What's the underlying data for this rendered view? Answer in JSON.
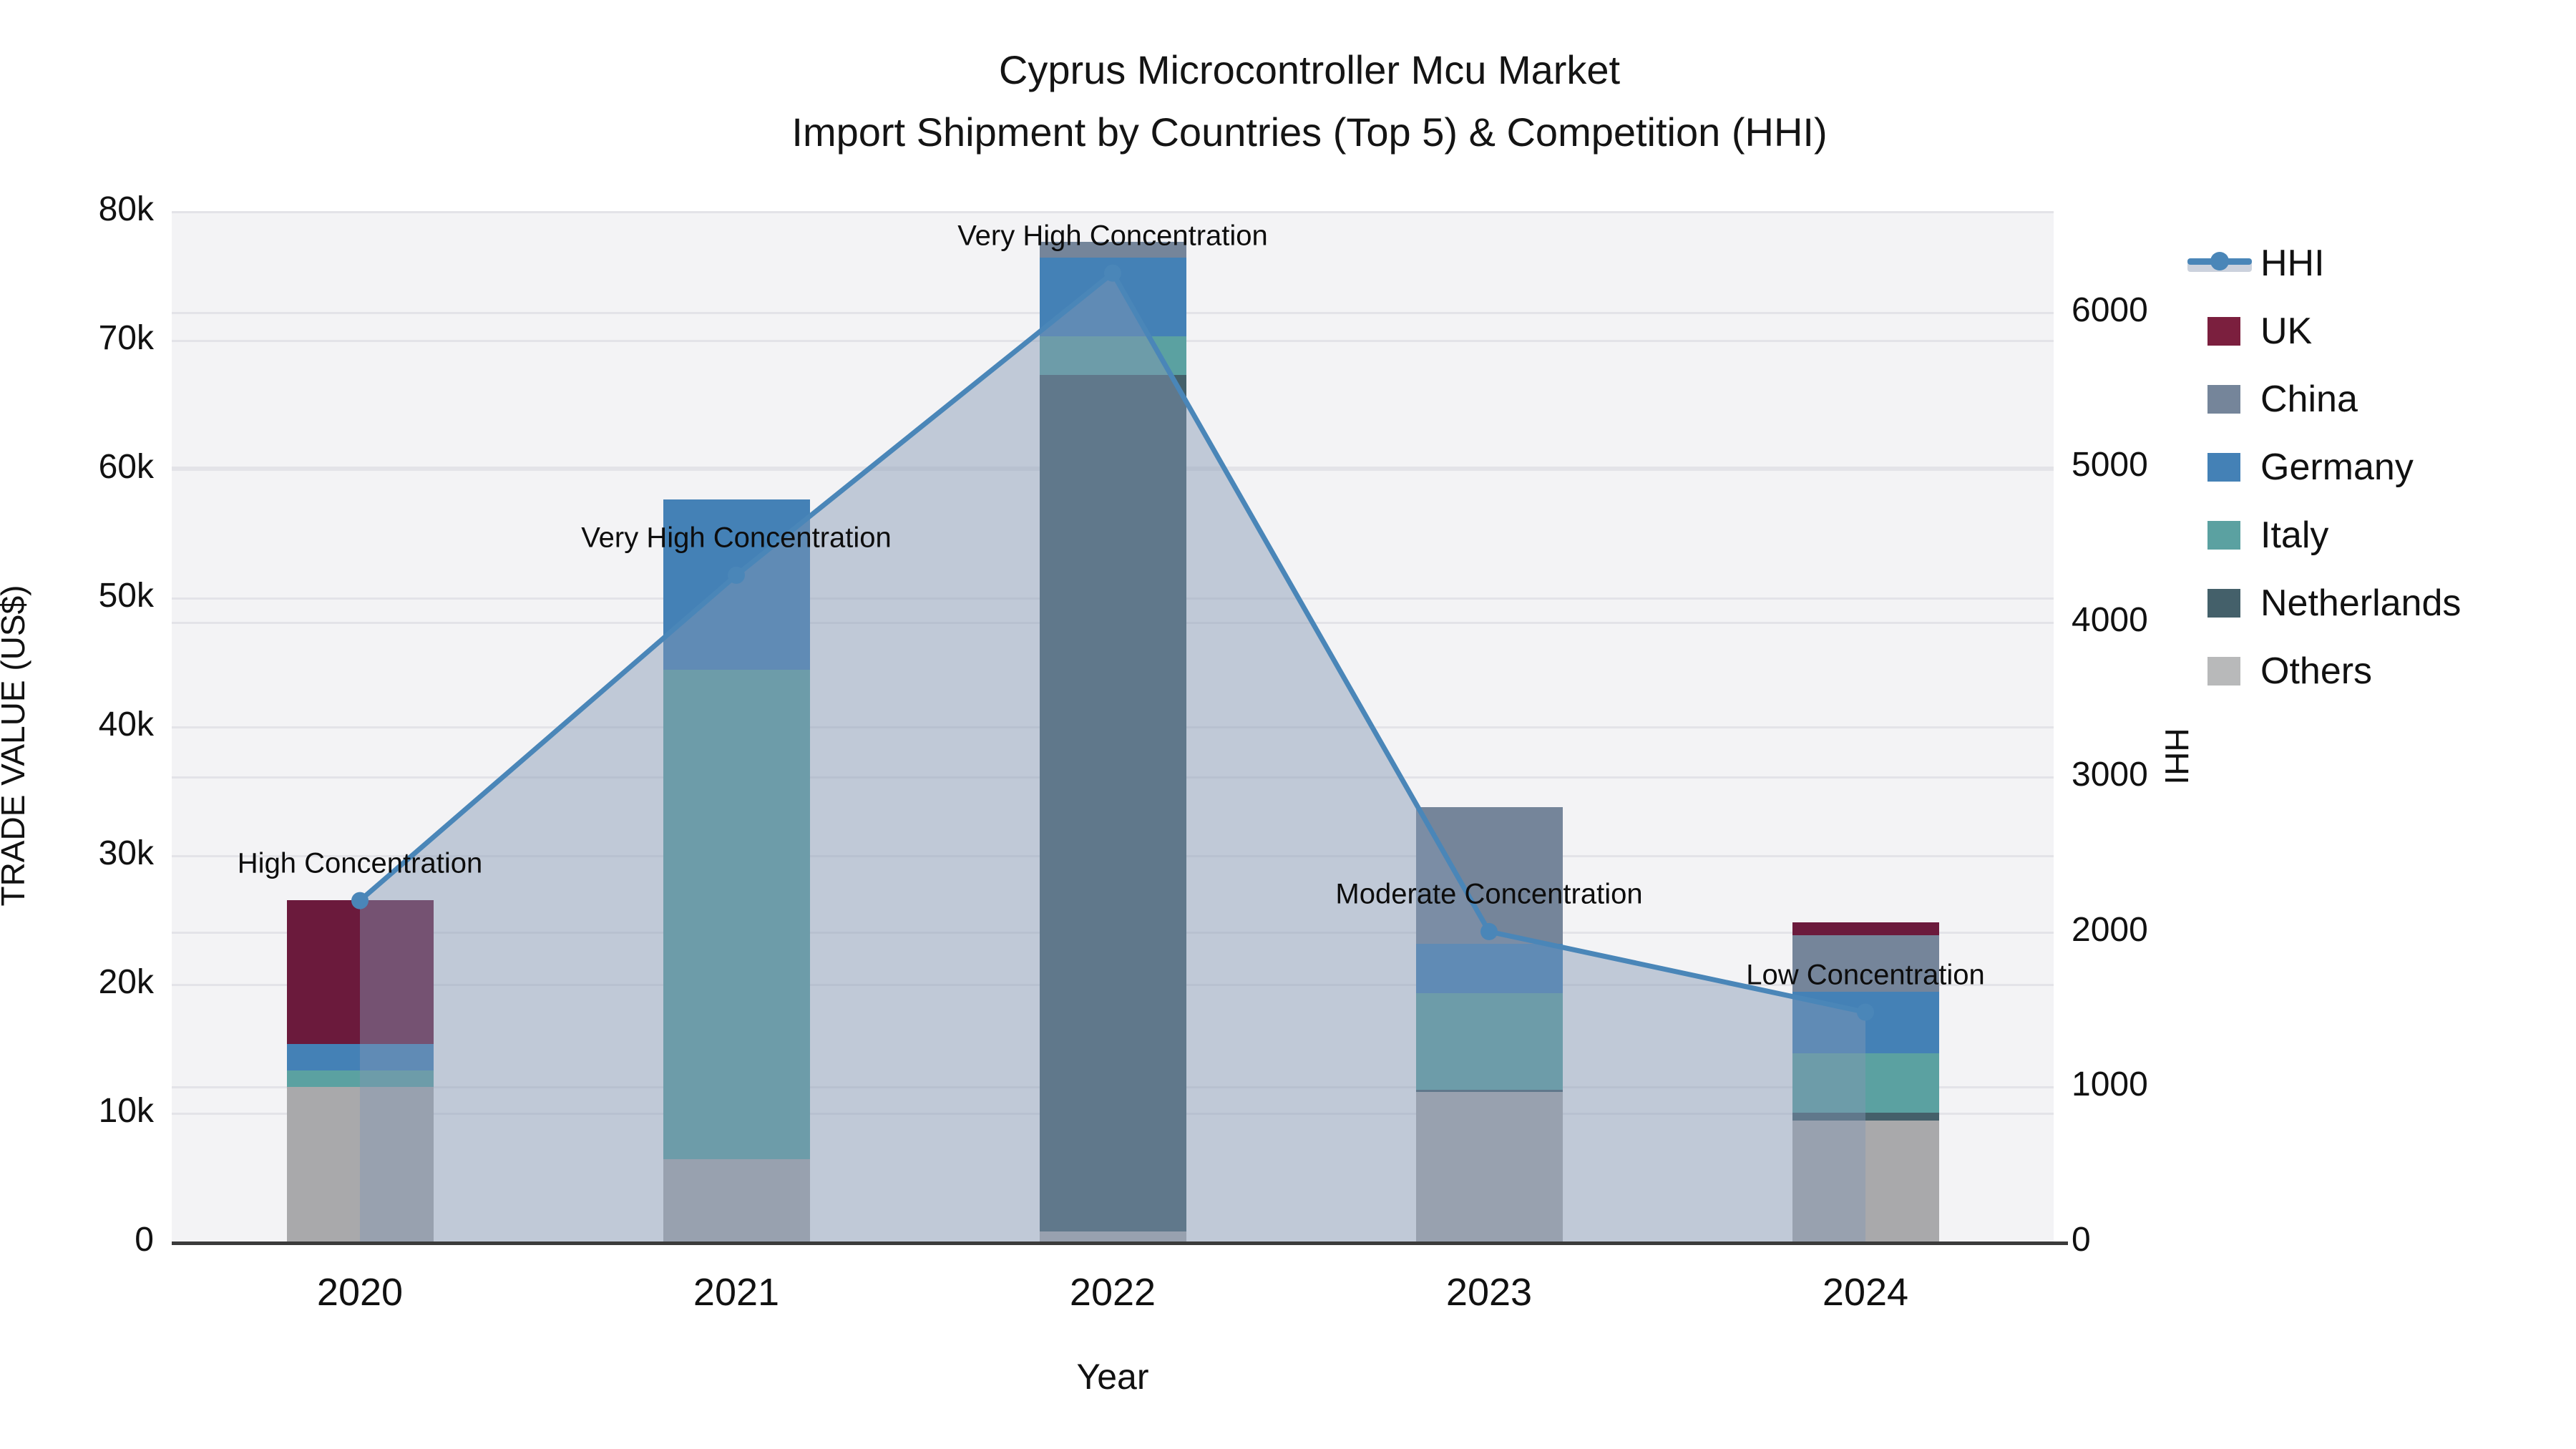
{
  "title": {
    "line1": "Cyprus Microcontroller Mcu Market",
    "line2": "Import Shipment by Countries (Top 5) & Competition (HHI)"
  },
  "chart_data": {
    "type": "bar+line",
    "title": "Cyprus Microcontroller Mcu Market — Import Shipment by Countries (Top 5) & Competition (HHI)",
    "categories": [
      "2020",
      "2021",
      "2022",
      "2023",
      "2024"
    ],
    "xlabel": "Year",
    "ylabel_left": "TRADE VALUE (US$)",
    "ylabel_right": "HHI",
    "ylim_left": [
      0,
      80000
    ],
    "ylim_right": [
      0,
      6650
    ],
    "yticks_left": [
      "0",
      "10k",
      "20k",
      "30k",
      "40k",
      "50k",
      "60k",
      "70k",
      "80k"
    ],
    "yticks_right": [
      "0",
      "1000",
      "2000",
      "3000",
      "4000",
      "5000",
      "6000"
    ],
    "grid": "on",
    "legend_position": "right",
    "stack_note": "bars stacked bottom-to-top in series order below",
    "series": [
      {
        "name": "Others",
        "color": "#a9a9ab",
        "values": [
          12000,
          6400,
          800,
          11600,
          9400
        ]
      },
      {
        "name": "Netherlands",
        "color": "#44606a",
        "values": [
          0,
          0,
          66500,
          200,
          600
        ]
      },
      {
        "name": "Italy",
        "color": "#5ba1a1",
        "values": [
          1300,
          38000,
          3000,
          7500,
          4600
        ]
      },
      {
        "name": "Germany",
        "color": "#4481b6",
        "values": [
          2050,
          13200,
          6100,
          3800,
          4800
        ]
      },
      {
        "name": "China",
        "color": "#75859a",
        "values": [
          0,
          0,
          1200,
          10600,
          4400
        ]
      },
      {
        "name": "UK",
        "color": "#6b1a3c",
        "values": [
          11150,
          0,
          0,
          0,
          1000
        ]
      }
    ],
    "bar_totals": [
      26500,
      57600,
      77600,
      33700,
      24800
    ],
    "hhi": {
      "name": "HHI",
      "line_color": "#4a86b8",
      "area_color": "rgba(130,150,180,0.45)",
      "values": [
        2200,
        4300,
        6250,
        2000,
        1480
      ]
    },
    "annotations": [
      {
        "year": "2020",
        "text": "High Concentration"
      },
      {
        "year": "2021",
        "text": "Very High Concentration"
      },
      {
        "year": "2022",
        "text": "Very High Concentration"
      },
      {
        "year": "2023",
        "text": "Moderate Concentration"
      },
      {
        "year": "2024",
        "text": "Low Concentration"
      }
    ],
    "legend": [
      {
        "label": "HHI",
        "type": "line",
        "color": "#4a86b8"
      },
      {
        "label": "UK",
        "type": "swatch",
        "color": "#7b1f3e"
      },
      {
        "label": "China",
        "type": "swatch",
        "color": "#75859a"
      },
      {
        "label": "Germany",
        "type": "swatch",
        "color": "#4481b6"
      },
      {
        "label": "Italy",
        "type": "swatch",
        "color": "#5ba1a1"
      },
      {
        "label": "Netherlands",
        "type": "swatch",
        "color": "#44606a"
      },
      {
        "label": "Others",
        "type": "swatch",
        "color": "#b8b9ba"
      }
    ]
  }
}
